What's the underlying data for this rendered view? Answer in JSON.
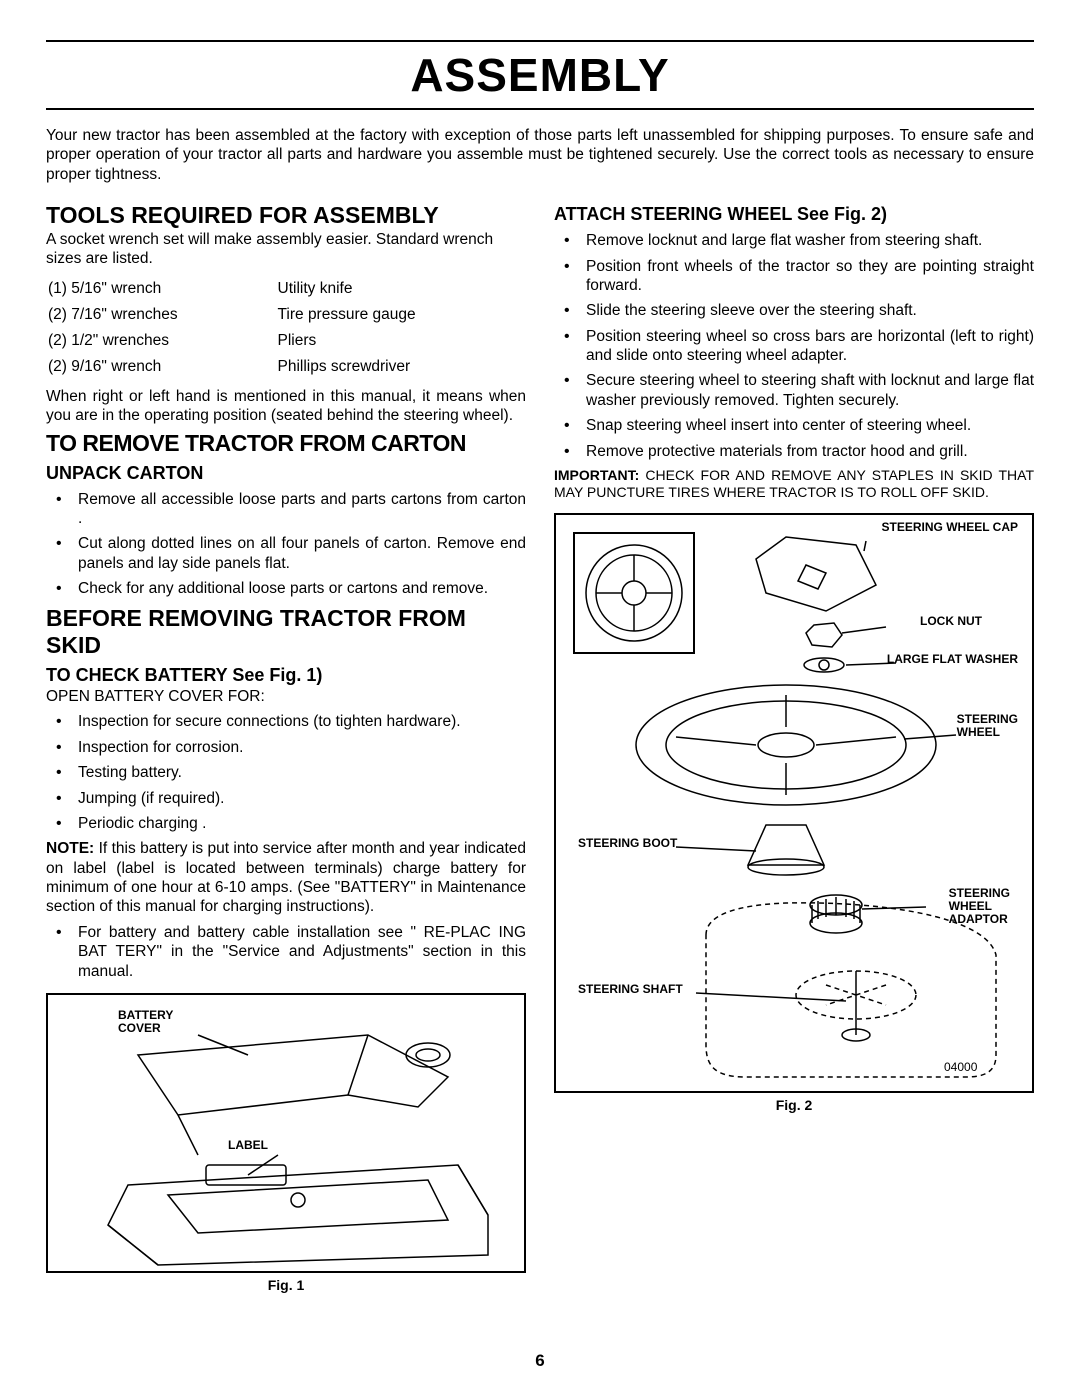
{
  "page": {
    "title": "ASSEMBLY",
    "intro": "Your new tractor has been assembled at the factory with exception of those parts left unassembled for shipping purposes. To ensure safe and proper operation of your tractor all parts and hardware you assemble must be tightened securely.  Use the correct tools as necessary to ensure proper tightness.",
    "page_number": "6"
  },
  "left": {
    "tools_heading": "TOOLS REQUIRED FOR ASSEMBLY",
    "tools_intro": "A socket wrench set will make assembly easier.  Standard wrench sizes are listed.",
    "tools": [
      [
        "(1)  5/16\" wrench",
        "Utility knife"
      ],
      [
        "(2)  7/16\" wrenches",
        "Tire pressure gauge"
      ],
      [
        "(2)  1/2\" wrenches",
        "Pliers"
      ],
      [
        "(2)  9/16\" wrench",
        "Phillips screwdriver"
      ]
    ],
    "hand_note": "When right or left hand is mentioned in this manual, it means when you are in the operating position (seated behind the steering wheel).",
    "remove_heading": "TO REMOVE TRACTOR FROM CARTON",
    "unpack_heading": "UNPACK CARTON",
    "unpack_items": [
      "Remove all accessible loose parts and parts cartons from carton .",
      "Cut along dotted lines on all four panels of carton. Remove end panels and lay side panels flat.",
      "Check for any additional loose parts or cartons and remove."
    ],
    "before_heading": "BEFORE REMOVING TRACTOR FROM SKID",
    "battery_heading": "TO CHECK BATTERY See Fig. 1)",
    "battery_open": "OPEN BATTERY COVER FOR:",
    "battery_items": [
      "Inspection for secure connections (to tighten hardware).",
      "Inspection for corrosion.",
      "Testing battery.",
      "Jumping (if required).",
      "Periodic charging ."
    ],
    "battery_note_prefix": "NOTE:",
    "battery_note": " If this battery is put into service after month and year indicated on label (label is located between terminals) charge battery for minimum of one hour at 6-10 amps. (See \"BATTERY\" in Maintenance  section of this manual for charging instructions).",
    "battery_see": "For battery and battery cable installation see \" RE-PLAC ING BAT TERY\" in the \"Service and Adjustments\" section in this manual.",
    "fig1_caption": "Fig. 1",
    "fig1_labels": {
      "battery_cover": "BATTERY\nCOVER",
      "label": "LABEL"
    }
  },
  "right": {
    "attach_heading": "ATTACH STEERING WHEEL See Fig. 2)",
    "attach_items": [
      "Remove locknut and large flat washer from steering shaft.",
      "Position front wheels of the tractor so they are pointing straight forward.",
      "Slide the steering sleeve over the steering shaft.",
      "Position steering wheel so cross bars are horizontal (left to right) and slide onto steering wheel adapter.",
      "Secure steering wheel to steering shaft with locknut and large flat washer previously removed.  Tighten securely.",
      "Snap steering wheel insert into center of steering wheel.",
      "Remove protective materials from tractor hood and grill."
    ],
    "important_prefix": "IMPORTANT:",
    "important": " CHECK FOR AND REMOVE ANY STAPLES IN SKID THAT MAY PUNCTURE TIRES WHERE TRACTOR IS TO ROLL OFF SKID.",
    "fig2_caption": "Fig. 2",
    "fig2_labels": {
      "cap": "STEERING WHEEL CAP",
      "locknut": "LOCK NUT",
      "washer": "LARGE FLAT WASHER",
      "wheel": "STEERING\nWHEEL",
      "boot": "STEERING BOOT",
      "adaptor": "STEERING\nWHEEL\nADAPTOR",
      "shaft": "STEERING SHAFT"
    }
  }
}
